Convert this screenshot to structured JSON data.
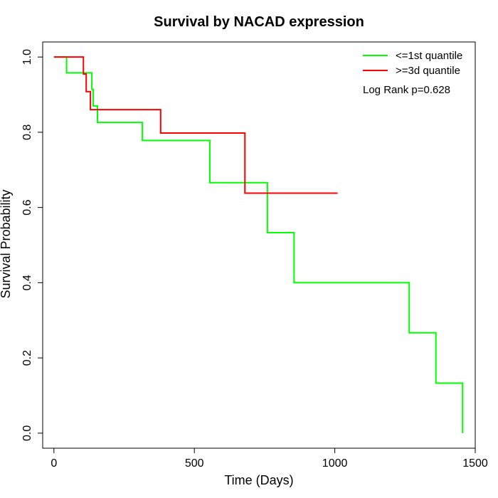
{
  "chart_data": {
    "type": "line",
    "title": "Survival by NACAD expression",
    "xlabel": "Time (Days)",
    "ylabel": "Survival Probability",
    "xlim": [
      -40,
      1500
    ],
    "ylim": [
      -0.04,
      1.04
    ],
    "x_ticks": [
      "0",
      "500",
      "1000",
      "1500"
    ],
    "y_ticks": [
      "0.0",
      "0.2",
      "0.4",
      "0.6",
      "0.8",
      "1.0"
    ],
    "grid": false,
    "legend_position": "top-right",
    "annotation": "Log Rank p=0.628",
    "series": [
      {
        "name": "<=1st quantile",
        "color": "#00ff00",
        "steps": [
          [
            0,
            1.0
          ],
          [
            45,
            0.958
          ],
          [
            135,
            0.914
          ],
          [
            140,
            0.87
          ],
          [
            155,
            0.826
          ],
          [
            315,
            0.778
          ],
          [
            555,
            0.666
          ],
          [
            760,
            0.533
          ],
          [
            855,
            0.4
          ],
          [
            1265,
            0.267
          ],
          [
            1360,
            0.133
          ],
          [
            1455,
            0.0
          ]
        ],
        "end_x": 1455
      },
      {
        "name": ">=3d quantile",
        "color": "#ff0000",
        "steps": [
          [
            0,
            1.0
          ],
          [
            105,
            0.955
          ],
          [
            115,
            0.908
          ],
          [
            130,
            0.86
          ],
          [
            380,
            0.798
          ],
          [
            680,
            0.638
          ]
        ],
        "end_x": 1010
      }
    ]
  }
}
